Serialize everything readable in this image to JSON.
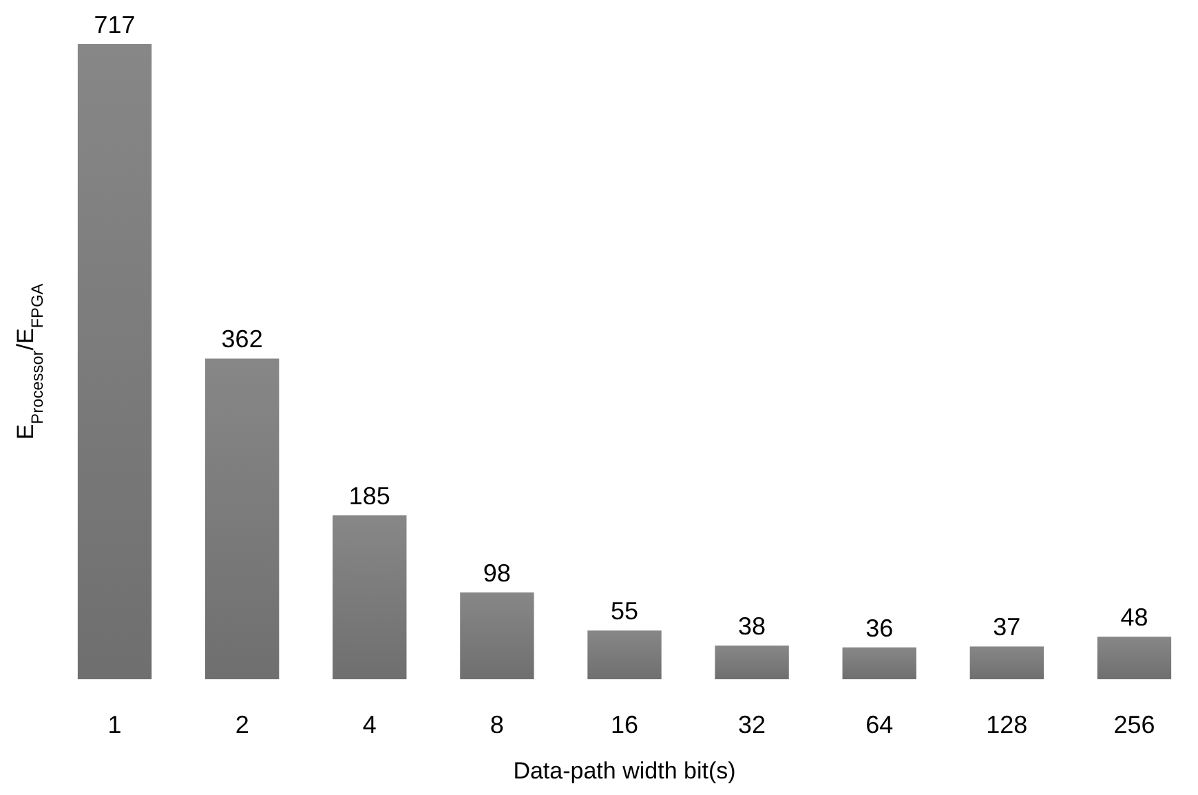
{
  "chart_data": {
    "type": "bar",
    "xlabel": "Data-path width bit(s)",
    "ylabel": "E$_{Processor}$/E$_{FPGA}$",
    "categories": [
      "1",
      "2",
      "4",
      "8",
      "16",
      "32",
      "64",
      "128",
      "256"
    ],
    "values": [
      717,
      362,
      185,
      98,
      55,
      38,
      36,
      37,
      48
    ],
    "color": "#808080",
    "data_labels": true
  }
}
